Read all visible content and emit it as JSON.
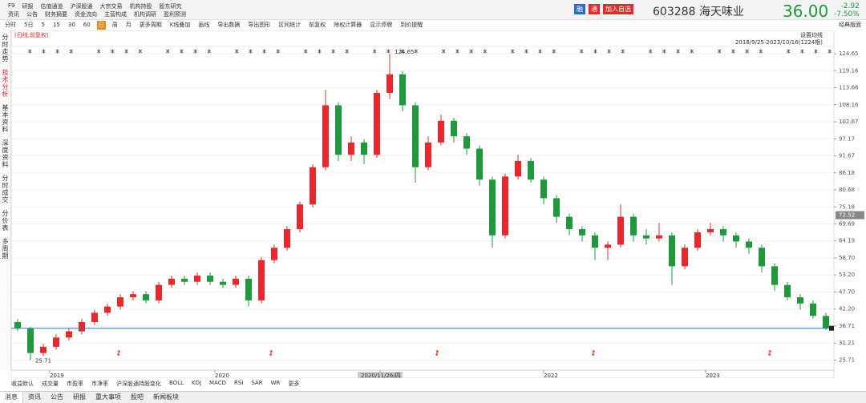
{
  "header": {
    "links_row1": [
      "F9",
      "研报",
      "估值通道",
      "沪深股通",
      "大宗交易",
      "机构持股",
      "股东研究"
    ],
    "links_row2": [
      "资讯",
      "公告",
      "财务摘要",
      "资金流向",
      "主营构成",
      "机构调研",
      "盈利预测"
    ],
    "buttons": [
      "融",
      "通",
      "加入自选"
    ],
    "code": "603288",
    "name": "海天味业",
    "price": "36.00",
    "change": "-2.92",
    "change_pct": "-7.50%"
  },
  "toolbar": {
    "items": [
      "分时",
      "5日",
      "5",
      "15",
      "30",
      "60",
      "日",
      "周",
      "月",
      "更多周期",
      "K线叠加",
      "画线",
      "导出数据",
      "导出图形",
      "区间统计",
      "前复权",
      "除权计算器",
      "显示停牌",
      "到价提醒"
    ],
    "active": 6,
    "layout": "经典版面"
  },
  "side_nav": {
    "items": [
      "分时走势",
      "技术分析",
      "基本资料",
      "深度资料",
      "分时成交",
      "分价表",
      "多周期"
    ],
    "active": 1
  },
  "chart_data": {
    "type": "candlestick",
    "subtitle": "(日线,前复权)",
    "ma_setting": "设置均线",
    "range_label": "2018/9/25-2023/10/16(1224根)",
    "up_color": "#e8282b",
    "down_color": "#1e9a3c",
    "candles": [
      [
        38,
        39,
        35,
        36
      ],
      [
        36,
        36.5,
        25.71,
        28
      ],
      [
        28,
        31,
        27,
        30
      ],
      [
        30,
        34,
        29,
        33
      ],
      [
        33,
        36,
        32,
        35
      ],
      [
        35,
        39,
        34,
        38
      ],
      [
        38,
        42,
        37,
        41
      ],
      [
        41,
        44,
        40,
        43
      ],
      [
        43,
        47,
        42,
        46
      ],
      [
        46,
        48,
        45,
        47
      ],
      [
        47,
        48,
        44,
        45
      ],
      [
        45,
        51,
        44,
        50
      ],
      [
        50,
        53,
        49,
        52
      ],
      [
        52,
        53,
        50,
        51
      ],
      [
        51,
        54,
        50,
        53
      ],
      [
        53,
        54,
        50,
        51
      ],
      [
        51,
        52,
        49,
        50
      ],
      [
        50,
        53,
        49,
        52
      ],
      [
        52,
        53,
        43,
        45
      ],
      [
        45,
        59,
        44,
        58
      ],
      [
        58,
        63,
        57,
        62
      ],
      [
        62,
        69,
        61,
        68
      ],
      [
        68,
        77,
        67,
        76
      ],
      [
        76,
        89,
        75,
        88
      ],
      [
        88,
        113,
        87,
        108
      ],
      [
        108,
        109,
        90,
        92
      ],
      [
        92,
        98,
        90,
        96
      ],
      [
        96,
        97,
        89,
        92
      ],
      [
        92,
        113,
        91,
        112
      ],
      [
        112,
        124.65,
        110,
        118
      ],
      [
        118,
        119,
        106,
        108
      ],
      [
        108,
        109,
        83,
        88
      ],
      [
        88,
        98,
        87,
        96
      ],
      [
        96,
        105,
        95,
        103
      ],
      [
        103,
        104,
        96,
        98
      ],
      [
        98,
        99,
        92,
        94
      ],
      [
        94,
        95,
        82,
        84
      ],
      [
        84,
        85,
        62,
        66
      ],
      [
        66,
        86,
        65,
        85
      ],
      [
        85,
        92,
        84,
        90
      ],
      [
        90,
        91,
        83,
        84
      ],
      [
        84,
        85,
        76,
        78
      ],
      [
        78,
        79,
        70,
        72
      ],
      [
        72,
        73,
        66,
        68
      ],
      [
        68,
        69,
        64,
        66
      ],
      [
        66,
        67,
        58,
        62
      ],
      [
        62,
        64,
        58,
        63
      ],
      [
        63,
        76,
        62,
        72
      ],
      [
        72,
        73,
        64,
        66
      ],
      [
        66,
        68,
        63,
        65
      ],
      [
        65,
        70,
        64,
        66
      ],
      [
        66,
        67,
        50,
        56
      ],
      [
        56,
        63,
        55,
        62
      ],
      [
        62,
        68,
        61,
        67
      ],
      [
        67,
        70,
        66,
        68
      ],
      [
        68,
        69,
        64,
        66
      ],
      [
        66,
        67,
        62,
        64
      ],
      [
        64,
        65,
        60,
        62
      ],
      [
        62,
        63,
        54,
        56
      ],
      [
        56,
        57,
        48,
        50
      ],
      [
        50,
        51,
        45,
        46
      ],
      [
        46,
        47,
        42,
        44
      ],
      [
        44,
        45,
        39,
        40
      ],
      [
        40,
        41,
        35.5,
        36
      ]
    ],
    "ylim": [
      23.5,
      127
    ],
    "yticks": [
      124.65,
      119.16,
      113.66,
      108.16,
      102.67,
      97.17,
      91.67,
      86.18,
      80.68,
      75.18,
      69.69,
      64.19,
      {
        "value": 58.7,
        "label": "58.70"
      },
      {
        "value": 53.2,
        "label": "53.20"
      },
      {
        "value": 47.7,
        "label": "47.70"
      },
      {
        "value": 42.2,
        "label": "42.20"
      },
      36.71,
      31.21,
      25.71
    ],
    "grid": true,
    "price_line": 36,
    "cursor_price": 72.52,
    "x_labels": [
      "2019",
      "2020",
      "2020/11/26/四",
      "2022",
      "2023"
    ],
    "indicators": [
      "收益默认",
      "成交量",
      "市盈率",
      "市净率",
      "沪深股通持股变化",
      "BOLL",
      "KDJ",
      "MACD",
      "RSI",
      "SAR",
      "WR",
      "更多"
    ]
  },
  "bottom_tabs": {
    "items": [
      "消息",
      "资讯",
      "公告",
      "研报",
      "重大事项",
      "股吧",
      "新闻板块"
    ],
    "active": 0
  }
}
